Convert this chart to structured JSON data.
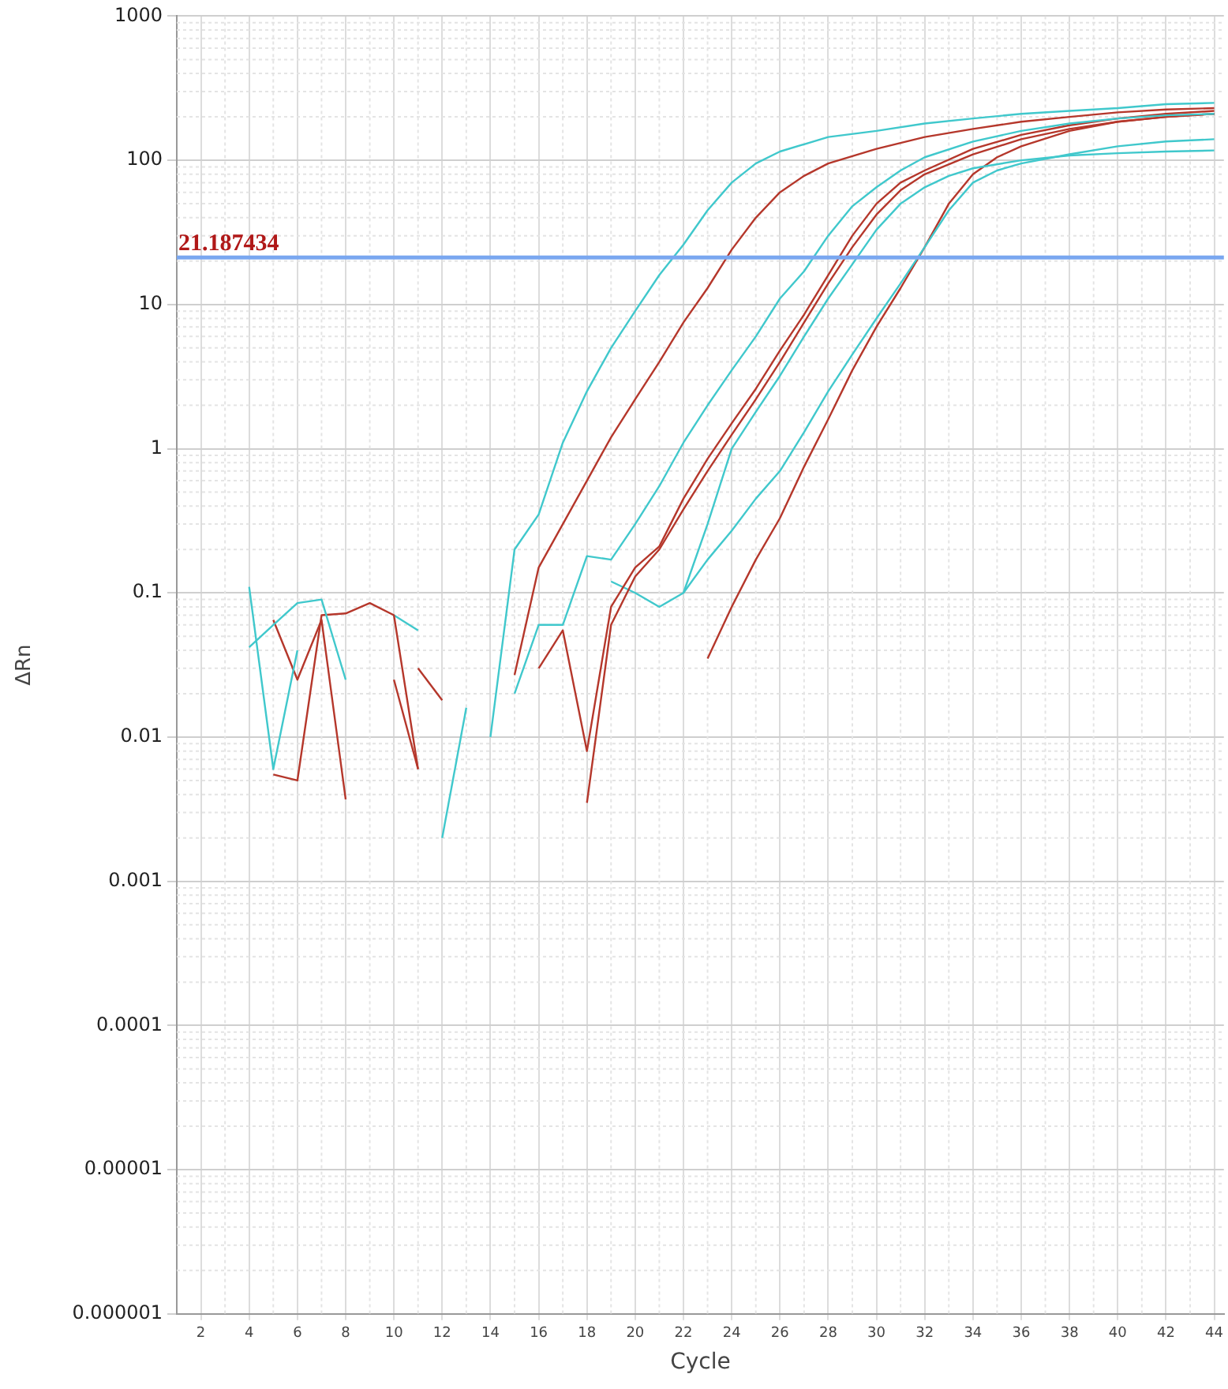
{
  "chart_data": {
    "type": "line",
    "xlabel": "Cycle",
    "ylabel": "ΔRn",
    "log": "y",
    "grid": true,
    "legend": false,
    "marker": "none",
    "line_style": "solid",
    "xlim": [
      1,
      44.4
    ],
    "xticks": [
      2,
      4,
      6,
      8,
      10,
      12,
      14,
      16,
      18,
      20,
      22,
      24,
      26,
      28,
      30,
      32,
      34,
      36,
      38,
      40,
      42,
      44
    ],
    "ylim": [
      1e-06,
      1000
    ],
    "yticks": [
      {
        "value": 1e-06,
        "label": "0.000001"
      },
      {
        "value": 1e-05,
        "label": "0.00001"
      },
      0.0001,
      0.001,
      0.01,
      0.1,
      1,
      10,
      100,
      1000
    ],
    "ref_lines": [
      {
        "axis": "y",
        "value": 21.187434,
        "label": "21.187434",
        "color": "#7aa7f0"
      }
    ],
    "series": [
      {
        "color": "#40c8cc",
        "x": [
          14,
          15,
          16,
          17,
          18,
          19,
          20,
          21,
          22,
          23,
          24,
          25,
          26,
          28,
          30,
          32,
          34,
          36,
          38,
          40,
          42,
          44
        ],
        "values": [
          0.01,
          0.2,
          0.35,
          1.1,
          2.5,
          5,
          9,
          16,
          26,
          45,
          70,
          95,
          115,
          145,
          160,
          180,
          195,
          210,
          220,
          230,
          245,
          250
        ]
      },
      {
        "color": "#b5372b",
        "x": [
          15,
          16,
          17,
          18,
          19,
          20,
          21,
          22,
          23,
          24,
          25,
          26,
          27,
          28,
          30,
          32,
          34,
          36,
          38,
          40,
          42,
          44
        ],
        "values": [
          0.027,
          0.15,
          0.3,
          0.6,
          1.2,
          2.2,
          4,
          7.5,
          13,
          24,
          40,
          60,
          78,
          95,
          120,
          145,
          165,
          185,
          200,
          215,
          225,
          230
        ]
      },
      {
        "color": "#40c8cc",
        "x": [
          15,
          16,
          17,
          18,
          19,
          20,
          21,
          22,
          23,
          24,
          25,
          26,
          27,
          28,
          29,
          30,
          31,
          32,
          34,
          36,
          38,
          40,
          42,
          44
        ],
        "values": [
          0.02,
          0.06,
          0.06,
          0.18,
          0.17,
          0.3,
          0.55,
          1.1,
          2,
          3.5,
          6,
          11,
          17,
          30,
          48,
          65,
          85,
          105,
          135,
          160,
          180,
          195,
          205,
          210
        ]
      },
      {
        "color": "#b5372b",
        "x": [
          16,
          17,
          18,
          19,
          20,
          21,
          22,
          23,
          24,
          25,
          26,
          27,
          28,
          29,
          30,
          31,
          32,
          34,
          36,
          38,
          40,
          42,
          44
        ],
        "values": [
          0.03,
          0.055,
          0.008,
          0.08,
          0.15,
          0.21,
          0.45,
          0.85,
          1.5,
          2.6,
          4.8,
          8.5,
          16,
          30,
          50,
          70,
          85,
          120,
          150,
          175,
          195,
          210,
          220
        ]
      },
      {
        "color": "#b5372b",
        "x": [
          18,
          19,
          20,
          21,
          22,
          23,
          24,
          25,
          26,
          27,
          28,
          29,
          30,
          31,
          32,
          34,
          36,
          38,
          40,
          42,
          44
        ],
        "values": [
          0.0035,
          0.06,
          0.13,
          0.2,
          0.38,
          0.7,
          1.25,
          2.2,
          4,
          7.5,
          14,
          25,
          42,
          62,
          80,
          110,
          140,
          165,
          185,
          200,
          210
        ]
      },
      {
        "color": "#40c8cc",
        "x": [
          22,
          23,
          24,
          25,
          26,
          27,
          28,
          29,
          30,
          31,
          32,
          33,
          34,
          36,
          38,
          40,
          42,
          44
        ],
        "values": [
          0.1,
          0.3,
          1,
          1.8,
          3.2,
          6,
          11,
          19,
          33,
          50,
          65,
          78,
          88,
          100,
          108,
          112,
          115,
          117
        ]
      },
      {
        "color": "#40c8cc",
        "x": [
          19,
          20,
          21,
          22,
          23,
          24,
          25,
          26,
          27,
          28,
          29,
          30,
          31,
          32,
          33,
          34,
          35,
          36,
          38,
          40,
          42,
          44
        ],
        "values": [
          0.12,
          0.1,
          0.08,
          0.1,
          0.17,
          0.27,
          0.45,
          0.7,
          1.3,
          2.5,
          4.5,
          8,
          14,
          25,
          45,
          70,
          85,
          95,
          110,
          125,
          135,
          140
        ]
      },
      {
        "color": "#b5372b",
        "x": [
          23,
          24,
          25,
          26,
          27,
          28,
          29,
          30,
          31,
          32,
          33,
          34,
          35,
          36,
          38,
          40,
          42,
          44
        ],
        "values": [
          0.035,
          0.08,
          0.17,
          0.33,
          0.75,
          1.6,
          3.5,
          7,
          13,
          25,
          50,
          80,
          105,
          125,
          160,
          185,
          200,
          210
        ]
      },
      {
        "color": "#40c8cc",
        "x": [
          4,
          5,
          6
        ],
        "values": [
          0.11,
          0.006,
          0.04
        ]
      },
      {
        "color": "#40c8cc",
        "x": [
          4,
          5,
          6,
          7,
          8
        ],
        "values": [
          0.042,
          0.06,
          0.085,
          0.09,
          0.025
        ]
      },
      {
        "color": "#b5372b",
        "x": [
          5,
          6,
          7,
          8,
          9,
          10,
          11
        ],
        "values": [
          0.0055,
          0.005,
          0.07,
          0.072,
          0.085,
          0.07,
          0.006
        ]
      },
      {
        "color": "#b5372b",
        "x": [
          5,
          6,
          7,
          8
        ],
        "values": [
          0.065,
          0.025,
          0.065,
          0.0037
        ]
      },
      {
        "color": "#40c8cc",
        "x": [
          10,
          11
        ],
        "values": [
          0.07,
          0.055
        ]
      },
      {
        "color": "#40c8cc",
        "x": [
          12,
          13
        ],
        "values": [
          0.002,
          0.016
        ]
      },
      {
        "color": "#b5372b",
        "x": [
          10,
          11
        ],
        "values": [
          0.025,
          0.006
        ]
      },
      {
        "color": "#b5372b",
        "x": [
          11,
          12
        ],
        "values": [
          0.03,
          0.018
        ]
      }
    ]
  }
}
